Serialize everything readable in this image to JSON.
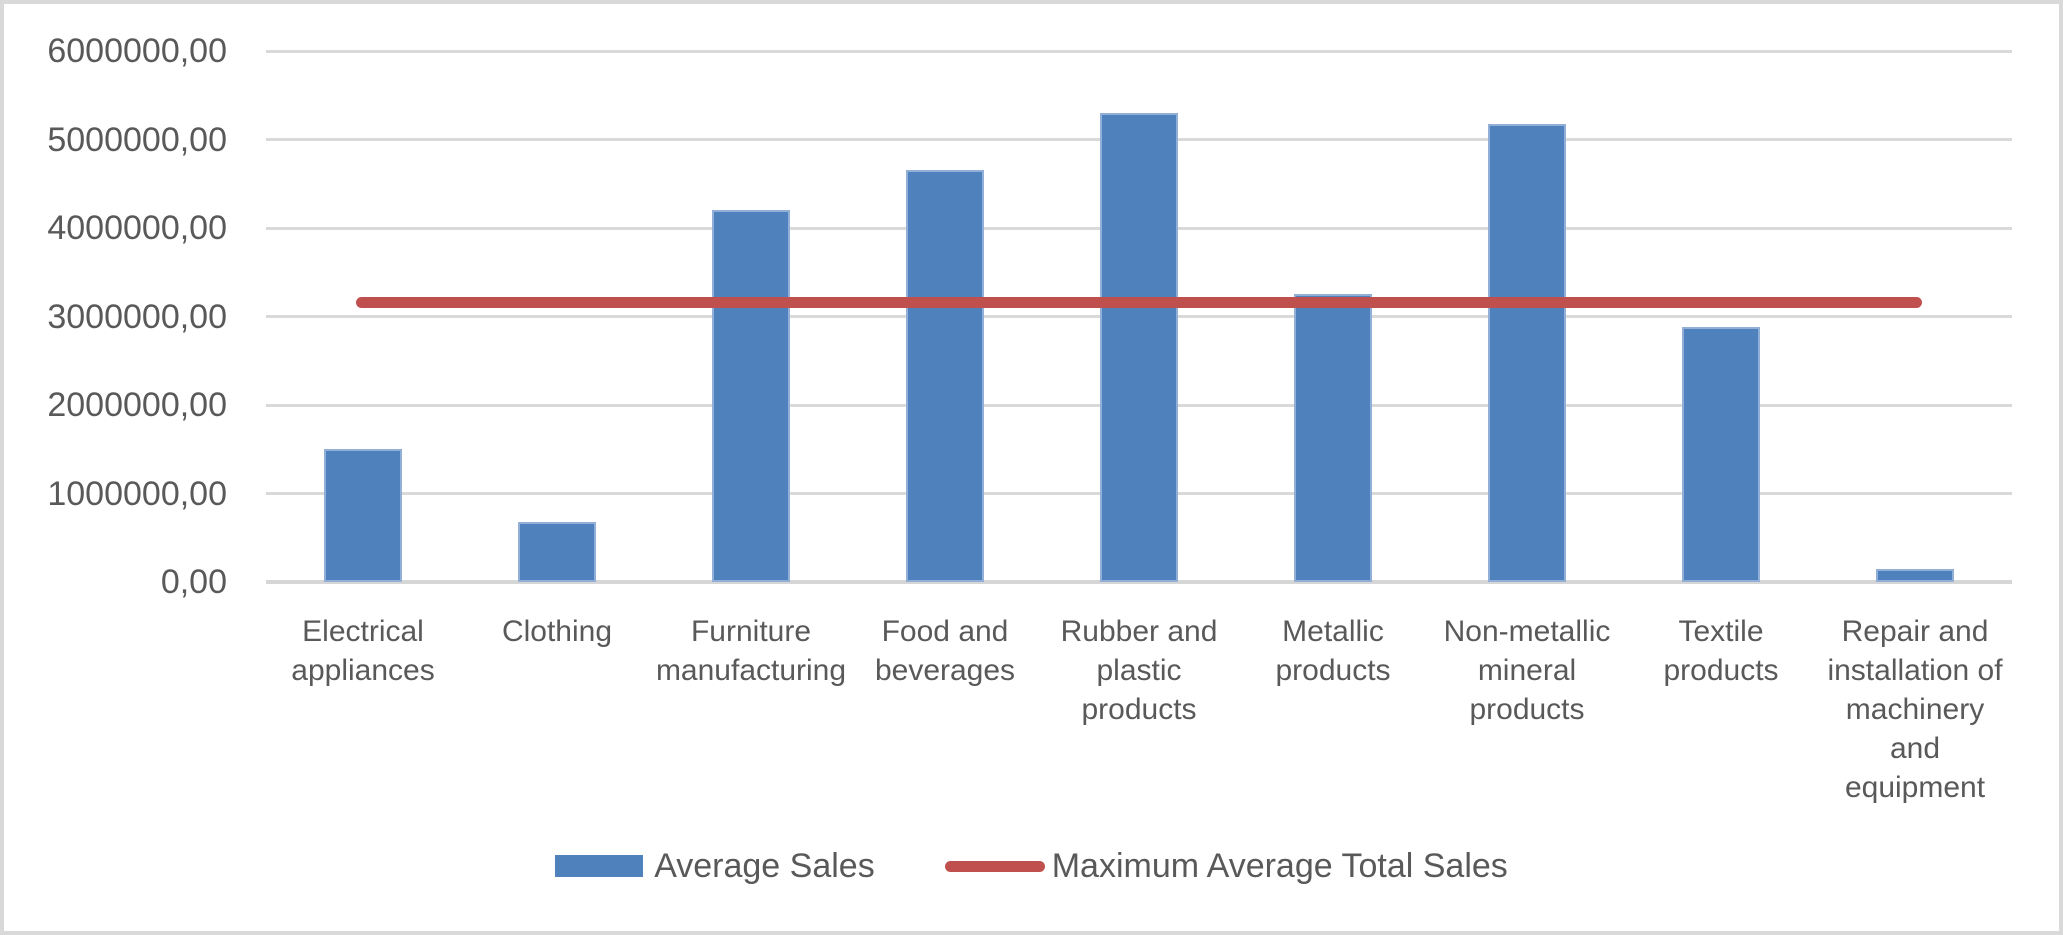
{
  "chart_data": {
    "type": "bar",
    "title": "",
    "xlabel": "",
    "ylabel": "",
    "categories": [
      "Electrical appliances",
      "Clothing",
      "Furniture manufacturing",
      "Food and beverages",
      "Rubber and plastic products",
      "Metallic products",
      "Non-metallic mineral products",
      "Textile products",
      "Repair and installation of machinery and equipment"
    ],
    "category_label_lines": [
      [
        "Electrical",
        "appliances"
      ],
      [
        "Clothing"
      ],
      [
        "Furniture",
        "manufacturing"
      ],
      [
        "Food and",
        "beverages"
      ],
      [
        "Rubber and",
        "plastic",
        "products"
      ],
      [
        "Metallic",
        "products"
      ],
      [
        "Non-metallic",
        "mineral",
        "products"
      ],
      [
        "Textile",
        "products"
      ],
      [
        "Repair and",
        "installation of",
        "machinery",
        "and",
        "equipment"
      ]
    ],
    "series": [
      {
        "name": "Average Sales",
        "type": "bar",
        "color": "#4F81BD",
        "border_color": "#92AFD7",
        "values": [
          1500000,
          680000,
          4200000,
          4650000,
          5300000,
          3250000,
          5180000,
          2880000,
          150000
        ]
      },
      {
        "name": "Maximum Average Total Sales",
        "type": "line",
        "color": "#C0504D",
        "values": [
          3160000,
          3160000,
          3160000,
          3160000,
          3160000,
          3160000,
          3160000,
          3160000,
          3160000
        ]
      }
    ],
    "y_axis": {
      "min": 0,
      "max": 6000000,
      "step": 1000000,
      "tick_labels": [
        "0,00",
        "1000000,00",
        "2000000,00",
        "3000000,00",
        "4000000,00",
        "5000000,00",
        "6000000,00"
      ]
    },
    "legend_position": "bottom",
    "grid": true,
    "colors": {
      "gridline": "#D9D9D9",
      "axis_line": "#D6D6D6",
      "text": "#595959",
      "background": "#FFFFFF",
      "frame_border": "#D9D9D9"
    }
  }
}
